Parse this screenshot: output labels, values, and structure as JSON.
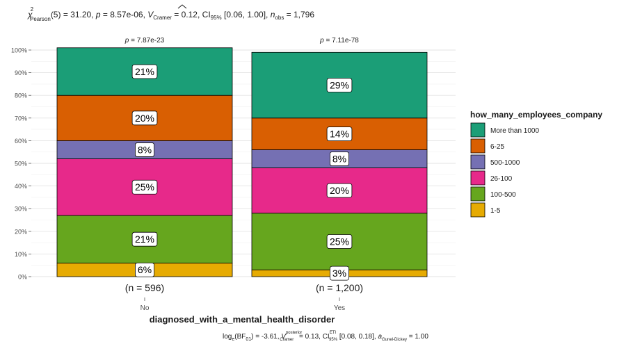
{
  "chart_data": {
    "type": "bar",
    "stacked": true,
    "percent": true,
    "subtitle_parts": {
      "chi": "χ",
      "chi_sup": "2",
      "chi_sub": "Pearson",
      "stat": "(5) = 31.20, ",
      "p_label": "p",
      "p_value": " = 8.57e-06, ",
      "v_hat": "V",
      "v_sub": "Cramer",
      "v_value": " = 0.12, CI",
      "ci_sub": "95%",
      "ci_value": " [0.06, 1.00], ",
      "n_label": "n",
      "n_sub": "obs",
      "n_value": " = 1,796"
    },
    "caption_parts": {
      "log": "log",
      "log_sub": "e",
      "bf": "(BF",
      "bf_sub": "01",
      "bf_value": ") = -3.61, ",
      "v_hat": "V",
      "v_sup": "posterior",
      "v_sub": "Cramer",
      "v_value": " = 0.13, CI",
      "ci_sup": "ETI",
      "ci_sub": "95%",
      "ci_value": " [0.08, 0.18], ",
      "a_label": "a",
      "a_sub": "Gunel-Dickey",
      "a_value": " = 1.00"
    },
    "xlabel": "diagnosed_with_a_mental_health_disorder",
    "ylabel": "",
    "ylim": [
      0,
      1
    ],
    "yticks": [
      0,
      0.1,
      0.2,
      0.3,
      0.4,
      0.5,
      0.6,
      0.7,
      0.8,
      0.9,
      1.0
    ],
    "ytick_labels": [
      "0%",
      "10%",
      "20%",
      "30%",
      "40%",
      "50%",
      "60%",
      "70%",
      "80%",
      "90%",
      "100%"
    ],
    "categories": [
      "No",
      "Yes"
    ],
    "counts": [
      "(n = 596)",
      "(n = 1,200)"
    ],
    "p_values": [
      "p = 7.87e-23",
      "p = 7.11e-78"
    ],
    "legend_title": "how_many_employees_company",
    "legend_position": "right",
    "series": [
      {
        "name": "1-5",
        "color": "#E6AB02",
        "values": [
          0.06,
          0.03
        ]
      },
      {
        "name": "100-500",
        "color": "#66A61E",
        "values": [
          0.21,
          0.25
        ]
      },
      {
        "name": "26-100",
        "color": "#E7298A",
        "values": [
          0.25,
          0.2
        ]
      },
      {
        "name": "500-1000",
        "color": "#7570B3",
        "values": [
          0.08,
          0.08
        ]
      },
      {
        "name": "6-25",
        "color": "#D95F02",
        "values": [
          0.2,
          0.14
        ]
      },
      {
        "name": "More than 1000",
        "color": "#1B9E77",
        "values": [
          0.21,
          0.29
        ]
      }
    ],
    "segment_labels": [
      [
        "6%",
        "21%",
        "25%",
        "8%",
        "20%",
        "21%"
      ],
      [
        "3%",
        "25%",
        "20%",
        "8%",
        "14%",
        "29%"
      ]
    ],
    "grid": true
  }
}
